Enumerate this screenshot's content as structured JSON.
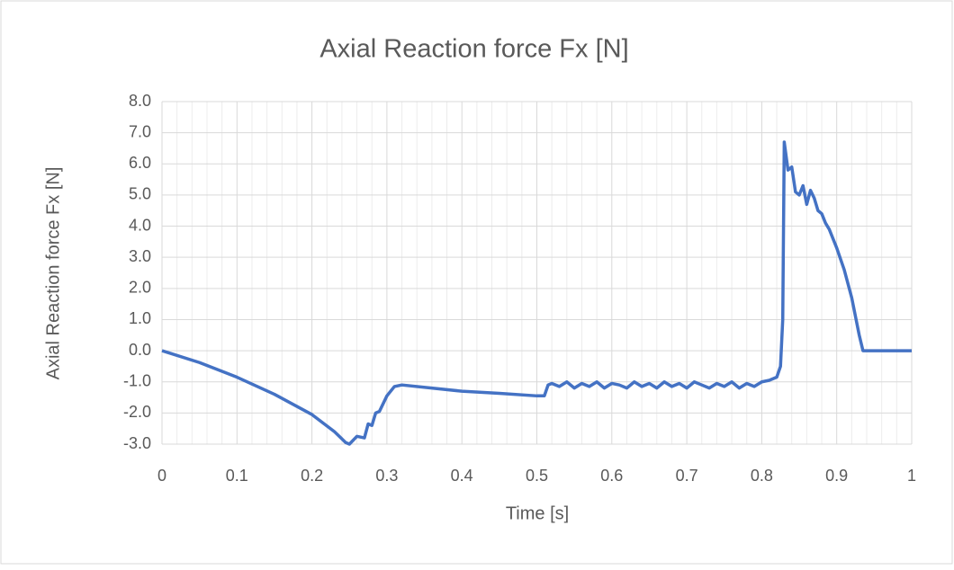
{
  "chart_data": {
    "type": "line",
    "title": "Axial Reaction force Fx [N]",
    "x_label": "Time [s]",
    "y_label": "Axial Reaction force Fx [N]",
    "xlim": [
      0,
      1
    ],
    "ylim": [
      -3,
      8
    ],
    "xticks": [
      0,
      0.1,
      0.2,
      0.3,
      0.4,
      0.5,
      0.6,
      0.7,
      0.8,
      0.9,
      1
    ],
    "yticks": [
      {
        "value": -3,
        "label": "-3.0"
      },
      {
        "value": -2,
        "label": "-2.0"
      },
      {
        "value": -1,
        "label": "-1.0"
      },
      {
        "value": 0,
        "label": "0.0"
      },
      {
        "value": 1,
        "label": "1.0"
      },
      {
        "value": 2,
        "label": "2.0"
      },
      {
        "value": 3,
        "label": "3.0"
      },
      {
        "value": 4,
        "label": "4.0"
      },
      {
        "value": 5,
        "label": "5.0"
      },
      {
        "value": 6,
        "label": "6.0"
      },
      {
        "value": 7,
        "label": "7.0"
      },
      {
        "value": 8,
        "label": "8.0"
      }
    ],
    "grid": true,
    "minor_grid": true,
    "series": [
      {
        "color": "#4472c4",
        "x": [
          0,
          0.05,
          0.1,
          0.15,
          0.2,
          0.23,
          0.245,
          0.25,
          0.26,
          0.27,
          0.275,
          0.28,
          0.285,
          0.29,
          0.3,
          0.31,
          0.32,
          0.4,
          0.45,
          0.5,
          0.51,
          0.515,
          0.52,
          0.53,
          0.54,
          0.55,
          0.56,
          0.57,
          0.58,
          0.59,
          0.6,
          0.61,
          0.62,
          0.63,
          0.64,
          0.65,
          0.66,
          0.67,
          0.68,
          0.69,
          0.7,
          0.71,
          0.72,
          0.73,
          0.74,
          0.75,
          0.76,
          0.77,
          0.78,
          0.79,
          0.8,
          0.81,
          0.82,
          0.825,
          0.828,
          0.83,
          0.835,
          0.84,
          0.845,
          0.85,
          0.855,
          0.86,
          0.865,
          0.87,
          0.875,
          0.88,
          0.885,
          0.89,
          0.9,
          0.91,
          0.92,
          0.93,
          0.935,
          1
        ],
        "values": [
          0,
          -0.38,
          -0.85,
          -1.4,
          -2.05,
          -2.6,
          -2.95,
          -3.0,
          -2.75,
          -2.8,
          -2.35,
          -2.4,
          -2.0,
          -1.95,
          -1.45,
          -1.15,
          -1.1,
          -1.3,
          -1.37,
          -1.45,
          -1.45,
          -1.1,
          -1.05,
          -1.15,
          -1.0,
          -1.2,
          -1.05,
          -1.15,
          -1.0,
          -1.2,
          -1.05,
          -1.1,
          -1.2,
          -1.0,
          -1.15,
          -1.05,
          -1.2,
          -1.0,
          -1.15,
          -1.05,
          -1.2,
          -1.0,
          -1.1,
          -1.2,
          -1.05,
          -1.15,
          -1.0,
          -1.2,
          -1.05,
          -1.15,
          -1.0,
          -0.95,
          -0.85,
          -0.5,
          1.0,
          6.7,
          5.8,
          5.9,
          5.1,
          5.0,
          5.3,
          4.7,
          5.15,
          4.9,
          4.5,
          4.4,
          4.1,
          3.9,
          3.3,
          2.6,
          1.7,
          0.5,
          0,
          0
        ]
      }
    ]
  }
}
